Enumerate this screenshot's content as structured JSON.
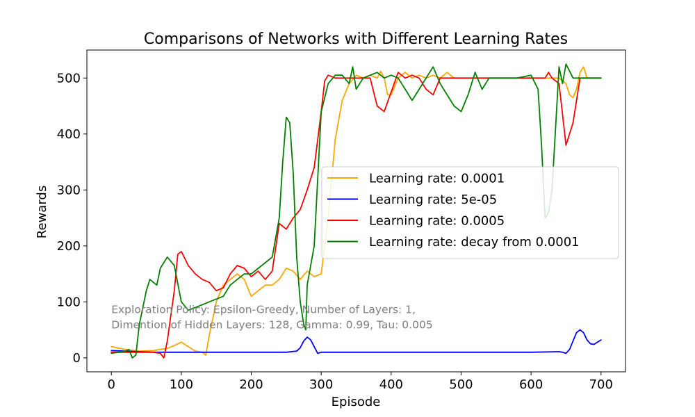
{
  "chart_data": {
    "type": "line",
    "title": "Comparisons of Networks with Different Learning Rates",
    "xlabel": "Episode",
    "ylabel": "Rewards",
    "xlim": [
      -35,
      735
    ],
    "ylim": [
      -25,
      550
    ],
    "xticks": [
      0,
      100,
      200,
      300,
      400,
      500,
      600,
      700
    ],
    "yticks": [
      0,
      100,
      200,
      300,
      400,
      500
    ],
    "grid": false,
    "legend_position": "center-right",
    "annotation": {
      "lines": [
        "Exploration Policy: Epsilon-Greedy, Number of Layers: 1,",
        "Dimention of Hidden Layers: 128, Gamma: 0.99, Tau: 0.005"
      ],
      "x": 0,
      "y": 70
    },
    "series": [
      {
        "name": "Learning rate: 0.0001",
        "color": "#ffa500",
        "x": [
          0,
          20,
          40,
          60,
          80,
          90,
          100,
          110,
          120,
          130,
          135,
          140,
          150,
          160,
          170,
          180,
          190,
          200,
          210,
          220,
          230,
          240,
          250,
          260,
          270,
          280,
          290,
          300,
          310,
          320,
          330,
          340,
          350,
          360,
          370,
          380,
          385,
          390,
          395,
          400,
          410,
          420,
          430,
          440,
          450,
          460,
          470,
          480,
          490,
          500,
          510,
          520,
          530,
          540,
          550,
          560,
          570,
          580,
          590,
          600,
          610,
          620,
          630,
          640,
          650,
          655,
          660,
          665,
          670,
          675,
          680,
          690,
          700
        ],
        "y": [
          20,
          15,
          12,
          13,
          17,
          22,
          28,
          20,
          12,
          10,
          5,
          40,
          100,
          130,
          140,
          150,
          140,
          110,
          120,
          130,
          130,
          140,
          160,
          155,
          140,
          155,
          145,
          150,
          250,
          390,
          460,
          490,
          505,
          500,
          505,
          500,
          512,
          500,
          470,
          470,
          500,
          510,
          500,
          505,
          500,
          505,
          500,
          510,
          500,
          500,
          500,
          500,
          500,
          500,
          500,
          500,
          500,
          500,
          500,
          500,
          500,
          500,
          500,
          500,
          490,
          470,
          465,
          480,
          510,
          520,
          500,
          500,
          500
        ]
      },
      {
        "name": "Learning rate: 5e-05",
        "color": "#0000ff",
        "x": [
          0,
          20,
          40,
          60,
          80,
          100,
          150,
          200,
          250,
          265,
          270,
          275,
          280,
          285,
          290,
          295,
          300,
          320,
          400,
          500,
          600,
          640,
          645,
          650,
          655,
          660,
          665,
          670,
          675,
          680,
          685,
          690,
          695,
          700
        ],
        "y": [
          13,
          12,
          11,
          10,
          10,
          10,
          10,
          10,
          10,
          12,
          18,
          30,
          37,
          32,
          20,
          8,
          10,
          10,
          10,
          10,
          10,
          11,
          10,
          8,
          15,
          30,
          45,
          50,
          45,
          32,
          25,
          24,
          28,
          32
        ]
      },
      {
        "name": "Learning rate: 0.0005",
        "color": "#ff0000",
        "x": [
          0,
          20,
          40,
          60,
          70,
          75,
          80,
          90,
          95,
          100,
          110,
          120,
          130,
          140,
          150,
          160,
          170,
          180,
          190,
          200,
          210,
          220,
          230,
          240,
          250,
          260,
          270,
          280,
          290,
          300,
          305,
          310,
          320,
          330,
          340,
          350,
          360,
          370,
          380,
          390,
          400,
          410,
          420,
          430,
          440,
          450,
          460,
          470,
          480,
          490,
          500,
          520,
          550,
          580,
          600,
          620,
          625,
          630,
          640,
          650,
          660,
          670,
          680,
          690,
          700
        ],
        "y": [
          10,
          10,
          10,
          10,
          8,
          0,
          30,
          120,
          185,
          190,
          165,
          150,
          140,
          135,
          120,
          125,
          150,
          165,
          160,
          145,
          155,
          140,
          155,
          240,
          230,
          250,
          265,
          300,
          340,
          440,
          495,
          505,
          500,
          500,
          500,
          500,
          500,
          500,
          450,
          440,
          475,
          510,
          500,
          505,
          500,
          480,
          470,
          500,
          500,
          500,
          500,
          500,
          500,
          500,
          500,
          500,
          510,
          500,
          490,
          380,
          420,
          500,
          500,
          500,
          500
        ]
      },
      {
        "name": "Learning rate: decay from 0.0001",
        "color": "#008000",
        "x": [
          0,
          10,
          20,
          25,
          30,
          35,
          40,
          50,
          55,
          60,
          65,
          70,
          80,
          90,
          100,
          110,
          120,
          130,
          140,
          150,
          160,
          170,
          180,
          190,
          200,
          210,
          220,
          230,
          240,
          245,
          250,
          255,
          260,
          265,
          270,
          275,
          278,
          280,
          290,
          300,
          310,
          320,
          330,
          340,
          345,
          350,
          360,
          370,
          380,
          390,
          400,
          410,
          420,
          430,
          440,
          450,
          460,
          470,
          480,
          490,
          500,
          510,
          520,
          530,
          540,
          550,
          580,
          600,
          610,
          615,
          620,
          625,
          630,
          640,
          645,
          650,
          660,
          670,
          680,
          690,
          700
        ],
        "y": [
          8,
          10,
          12,
          15,
          0,
          5,
          60,
          120,
          140,
          135,
          130,
          160,
          180,
          165,
          100,
          85,
          90,
          95,
          100,
          105,
          110,
          130,
          140,
          150,
          150,
          160,
          170,
          180,
          250,
          350,
          430,
          420,
          330,
          180,
          100,
          60,
          50,
          130,
          200,
          440,
          490,
          505,
          505,
          490,
          520,
          480,
          500,
          505,
          510,
          500,
          505,
          500,
          480,
          460,
          480,
          500,
          520,
          490,
          470,
          450,
          440,
          470,
          510,
          480,
          500,
          500,
          500,
          505,
          480,
          380,
          250,
          260,
          300,
          520,
          490,
          525,
          500,
          500,
          500,
          500,
          500
        ]
      }
    ]
  }
}
